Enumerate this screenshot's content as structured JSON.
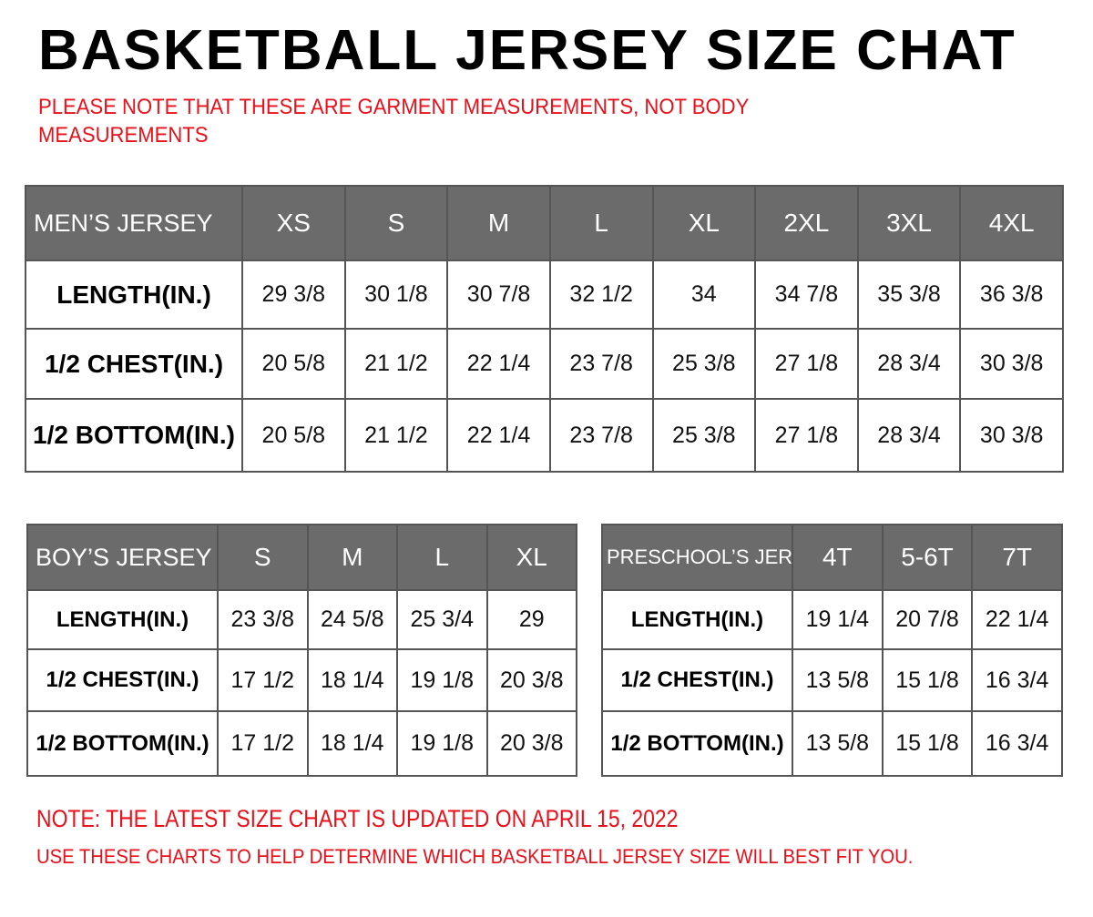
{
  "title": "BASKETBALL JERSEY SIZE CHAT",
  "note_lines": [
    "PLEASE NOTE THAT THESE ARE GARMENT MEASUREMENTS, NOT BODY",
    "MEASUREMENTS"
  ],
  "colors": {
    "header_bg": "#6b6b6b",
    "note_red": "#e8101a"
  },
  "mens": {
    "header": "MEN’S JERSEY",
    "sizes": [
      "XS",
      "S",
      "M",
      "L",
      "XL",
      "2XL",
      "3XL",
      "4XL"
    ],
    "rows": [
      {
        "label": "LENGTH(IN.)",
        "values": [
          "29 3/8",
          "30 1/8",
          "30 7/8",
          "32 1/2",
          "34",
          "34 7/8",
          "35 3/8",
          "36 3/8"
        ]
      },
      {
        "label": "1/2 CHEST(IN.)",
        "values": [
          "20 5/8",
          "21 1/2",
          "22 1/4",
          "23 7/8",
          "25 3/8",
          "27 1/8",
          "28 3/4",
          "30 3/8"
        ]
      },
      {
        "label": "1/2 BOTTOM(IN.)",
        "values": [
          "20 5/8",
          "21 1/2",
          "22 1/4",
          "23 7/8",
          "25 3/8",
          "27 1/8",
          "28 3/4",
          "30 3/8"
        ]
      }
    ]
  },
  "boys": {
    "header": "BOY’S JERSEY",
    "sizes": [
      "S",
      "M",
      "L",
      "XL"
    ],
    "rows": [
      {
        "label": "LENGTH(IN.)",
        "values": [
          "23 3/8",
          "24 5/8",
          "25 3/4",
          "29"
        ]
      },
      {
        "label": "1/2 CHEST(IN.)",
        "values": [
          "17 1/2",
          "18 1/4",
          "19 1/8",
          "20 3/8"
        ]
      },
      {
        "label": "1/2 BOTTOM(IN.)",
        "values": [
          "17 1/2",
          "18 1/4",
          "19 1/8",
          "20 3/8"
        ]
      }
    ]
  },
  "preschool": {
    "header": "PRESCHOOL’S JERSEY",
    "sizes": [
      "4T",
      "5-6T",
      "7T"
    ],
    "rows": [
      {
        "label": "LENGTH(IN.)",
        "values": [
          "19 1/4",
          "20 7/8",
          "22 1/4"
        ]
      },
      {
        "label": "1/2 CHEST(IN.)",
        "values": [
          "13 5/8",
          "15 1/8",
          "16 3/4"
        ]
      },
      {
        "label": "1/2 BOTTOM(IN.)",
        "values": [
          "13 5/8",
          "15 1/8",
          "16 3/4"
        ]
      }
    ]
  },
  "footer_lines": [
    "NOTE: THE LATEST SIZE CHART IS UPDATED ON APRIL 15, 2022",
    "USE THESE CHARTS TO HELP DETERMINE WHICH  BASKETBALL JERSEY  SIZE WILL BEST FIT YOU."
  ]
}
